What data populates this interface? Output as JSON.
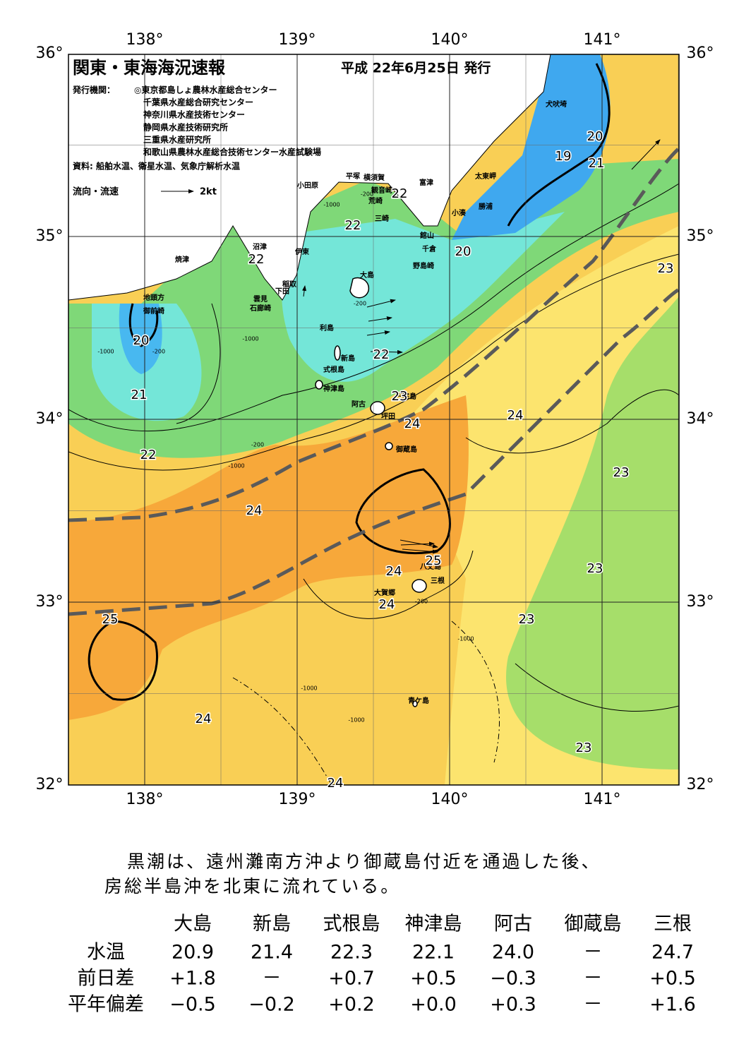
{
  "header": {
    "title": "関東・東海海況速報",
    "date": "平成 22年6月25日 発行",
    "issuers_label": "発行機関：",
    "issuers": [
      "◎東京都島しょ農林水産総合センター",
      "千葉県水産総合研究センター",
      "神奈川県水産技術センター",
      "静岡県水産技術研究所",
      "三重県水産研究所",
      "和歌山県農林水産総合技術センター水産試験場"
    ],
    "source": "資料: 船舶水温、衛星水温、気象庁解析水温",
    "current_legend": "流向・流速",
    "current_unit": "2kt"
  },
  "map": {
    "lon_ticks": [
      {
        "value": 138,
        "label": "138°"
      },
      {
        "value": 139,
        "label": "139°"
      },
      {
        "value": 140,
        "label": "140°"
      },
      {
        "value": 141,
        "label": "141°"
      }
    ],
    "lat_ticks": [
      {
        "value": 36,
        "label": "36°"
      },
      {
        "value": 35,
        "label": "35°"
      },
      {
        "value": 34,
        "label": "34°"
      },
      {
        "value": 33,
        "label": "33°"
      },
      {
        "value": 32,
        "label": "32°"
      }
    ],
    "places": [
      "犬吠埼",
      "太東岬",
      "勝浦",
      "小湊",
      "館山",
      "千倉",
      "野島崎",
      "富津",
      "横須賀",
      "観音崎",
      "平塚",
      "荒崎",
      "三崎",
      "小田原",
      "沼津",
      "伊東",
      "焼津",
      "稲取",
      "下田",
      "雲見",
      "石廊崎",
      "地頭方",
      "御前崎",
      "大島",
      "利島",
      "新島",
      "式根島",
      "神津島",
      "阿古",
      "三宅島",
      "坪田",
      "御蔵島",
      "八丈島",
      "三根",
      "大賀郷",
      "青ケ島"
    ],
    "contour_labels": [
      19,
      20,
      21,
      22,
      22,
      20,
      23,
      22,
      20,
      22,
      21,
      22,
      23,
      24,
      24,
      23,
      24,
      25,
      24,
      23,
      24,
      23,
      25,
      24,
      23,
      24
    ],
    "depth_labels": [
      "-200",
      "-1000",
      "-200",
      "-1000",
      "-200",
      "-1000",
      "-200",
      "-1000",
      "-1000",
      "-1000",
      "-200",
      "-1000"
    ]
  },
  "summary": [
    "黒潮は、遠州灘南方沖より御蔵島付近を通過した後、",
    "房総半島沖を北東に流れている。"
  ],
  "table": {
    "stations": [
      "大島",
      "新島",
      "式根島",
      "神津島",
      "阿古",
      "御蔵島",
      "三根"
    ],
    "rows": [
      {
        "label": "水温",
        "values": [
          "20.9",
          "21.4",
          "22.3",
          "22.1",
          "24.0",
          "－",
          "24.7"
        ]
      },
      {
        "label": "前日差",
        "values": [
          "+1.8",
          "－",
          "+0.7",
          "+0.5",
          "−0.3",
          "－",
          "+0.5"
        ]
      },
      {
        "label": "平年偏差",
        "values": [
          "−0.5",
          "−0.2",
          "+0.2",
          "+0.0",
          "+0.3",
          "－",
          "+1.6"
        ]
      }
    ]
  }
}
